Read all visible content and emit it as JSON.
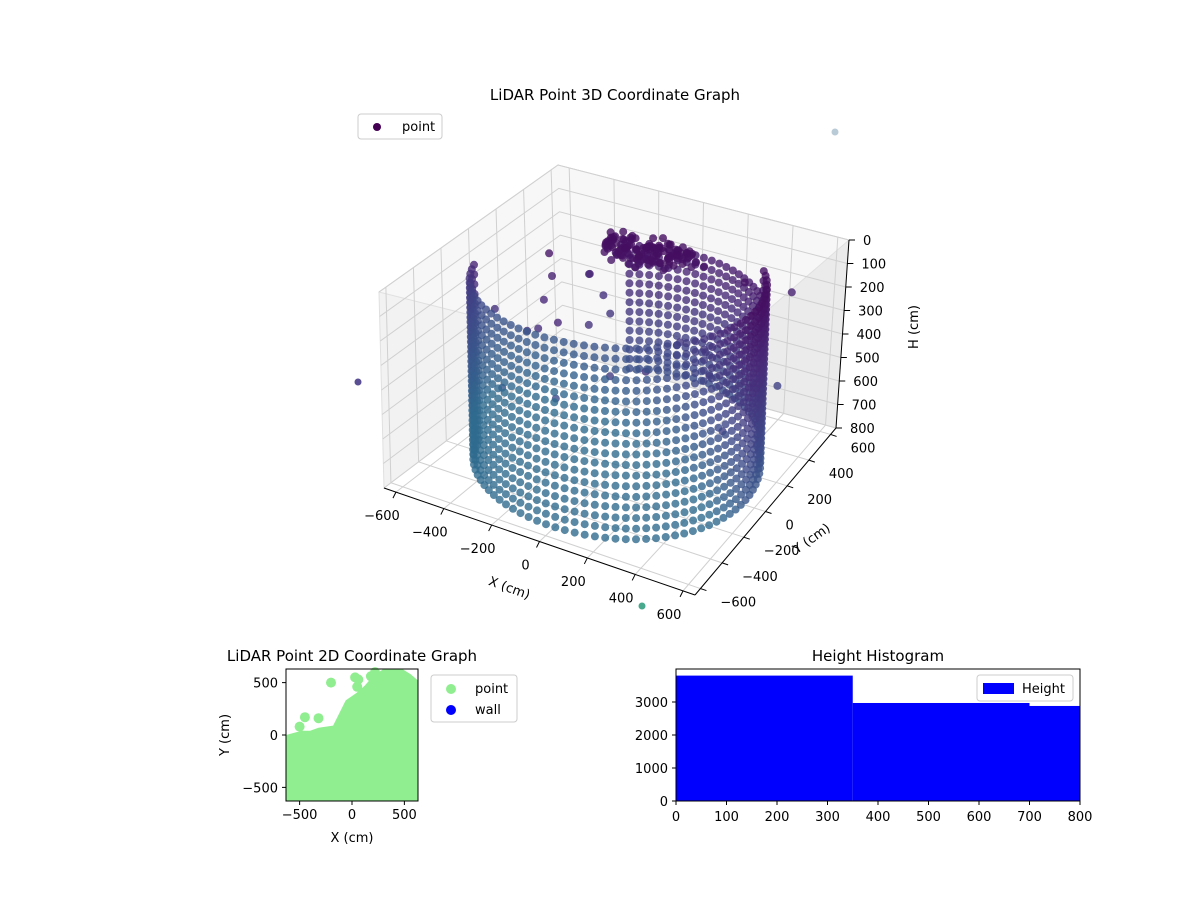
{
  "chart_data": [
    {
      "type": "scatter",
      "title": "LiDAR Point 3D Coordinate Graph",
      "xlabel": "X (cm)",
      "ylabel": "Y (cm)",
      "zlabel": "H (cm)",
      "xlim": [
        -650,
        650
      ],
      "ylim": [
        -650,
        650
      ],
      "zlim": [
        0,
        800
      ],
      "z_inverted": true,
      "x_ticks": [
        "−600",
        "−400",
        "−200",
        "0",
        "200",
        "400",
        "600"
      ],
      "y_ticks": [
        "−600",
        "−400",
        "−200",
        "0",
        "200",
        "400",
        "600"
      ],
      "z_ticks": [
        "0",
        "100",
        "200",
        "300",
        "400",
        "500",
        "600",
        "700",
        "800"
      ],
      "grid": true,
      "legend": {
        "placement": "top-left",
        "entries": [
          "point"
        ]
      },
      "colormap": "viridis",
      "series": [
        {
          "name": "point",
          "description_values": {
            "ring_radius": 560,
            "ring_center": [
              0,
              0
            ],
            "ring_height_range": [
              60,
              800
            ],
            "cluster_center": [
              -60,
              330,
              90
            ]
          }
        }
      ]
    },
    {
      "type": "scatter",
      "title": "LiDAR Point 2D Coordinate Graph",
      "xlabel": "X (cm)",
      "ylabel": "Y (cm)",
      "xlim": [
        -630,
        630
      ],
      "ylim": [
        -630,
        630
      ],
      "x_ticks": [
        "−500",
        "0",
        "500"
      ],
      "y_ticks": [
        "−500",
        "0",
        "500"
      ],
      "legend": {
        "placement": "outside-right",
        "entries": [
          "point",
          "wall"
        ]
      },
      "series": [
        {
          "name": "point",
          "color": "#90ee90",
          "points": [
            [
              -200,
              500
            ],
            [
              -450,
              170
            ],
            [
              -320,
              160
            ],
            [
              -500,
              80
            ],
            [
              30,
              550
            ],
            [
              60,
              530
            ],
            [
              50,
              460
            ],
            [
              180,
              560
            ],
            [
              220,
              600
            ]
          ]
        },
        {
          "name": "wall",
          "color": "#0000ff",
          "points": []
        }
      ],
      "filled_region_boundary": [
        [
          -630,
          -630
        ],
        [
          630,
          -630
        ],
        [
          630,
          520
        ],
        [
          560,
          580
        ],
        [
          480,
          630
        ],
        [
          300,
          630
        ],
        [
          200,
          560
        ],
        [
          120,
          470
        ],
        [
          40,
          400
        ],
        [
          -60,
          330
        ],
        [
          -180,
          90
        ],
        [
          -320,
          70
        ],
        [
          -400,
          40
        ],
        [
          -480,
          40
        ],
        [
          -630,
          0
        ]
      ]
    },
    {
      "type": "bar",
      "title": "Height Histogram",
      "xlim": [
        0,
        800
      ],
      "ylim": [
        0,
        4000
      ],
      "x_ticks": [
        "0",
        "100",
        "200",
        "300",
        "400",
        "500",
        "600",
        "700",
        "800"
      ],
      "y_ticks": [
        "0",
        "1000",
        "2000",
        "3000"
      ],
      "legend": {
        "placement": "top-right",
        "entries": [
          "Height"
        ]
      },
      "series": [
        {
          "name": "Height",
          "color": "#0000ff",
          "bins": [
            [
              0,
              350,
              3800
            ],
            [
              350,
              700,
              2970
            ],
            [
              700,
              800,
              2880
            ]
          ]
        }
      ]
    }
  ],
  "colors": {
    "viridis_dark": "#440154",
    "viridis_mid": "#3b528b",
    "point_green": "#90ee90",
    "wall_blue": "#0000ff",
    "hist_blue": "#0000ff"
  }
}
